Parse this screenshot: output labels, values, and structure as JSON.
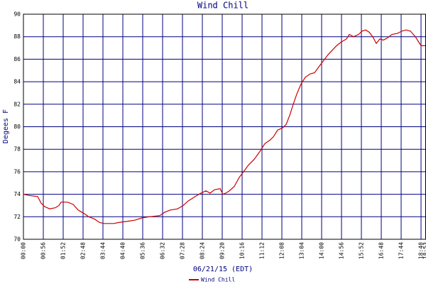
{
  "chart_data": {
    "type": "line",
    "title": "Wind Chill",
    "x_label": "06/21/15 (EDT)",
    "y_label": "Degees F",
    "xlim": [
      0,
      1133
    ],
    "ylim": [
      70,
      90
    ],
    "yticks": [
      70,
      72,
      74,
      76,
      78,
      80,
      82,
      84,
      86,
      88,
      90
    ],
    "xticks": [
      {
        "value": 0,
        "label": "00:00"
      },
      {
        "value": 56,
        "label": "00:56"
      },
      {
        "value": 112,
        "label": "01:52"
      },
      {
        "value": 168,
        "label": "02:48"
      },
      {
        "value": 224,
        "label": "03:44"
      },
      {
        "value": 280,
        "label": "04:40"
      },
      {
        "value": 336,
        "label": "05:36"
      },
      {
        "value": 392,
        "label": "06:32"
      },
      {
        "value": 448,
        "label": "07:28"
      },
      {
        "value": 504,
        "label": "08:24"
      },
      {
        "value": 560,
        "label": "09:20"
      },
      {
        "value": 616,
        "label": "10:16"
      },
      {
        "value": 672,
        "label": "11:12"
      },
      {
        "value": 728,
        "label": "12:08"
      },
      {
        "value": 784,
        "label": "13:04"
      },
      {
        "value": 840,
        "label": "14:00"
      },
      {
        "value": 896,
        "label": "14:56"
      },
      {
        "value": 952,
        "label": "15:52"
      },
      {
        "value": 1008,
        "label": "16:48"
      },
      {
        "value": 1064,
        "label": "17:44"
      },
      {
        "value": 1120,
        "label": "18:40"
      },
      {
        "value": 1133,
        "label": "18:53"
      }
    ],
    "grid": true,
    "legend": "bottom",
    "series": [
      {
        "name": "Wind Chill",
        "color": "#cc0000",
        "x": [
          0,
          14,
          40,
          50,
          60,
          74,
          90,
          100,
          106,
          124,
          140,
          154,
          170,
          184,
          200,
          214,
          226,
          254,
          270,
          294,
          314,
          334,
          354,
          384,
          398,
          414,
          434,
          450,
          464,
          484,
          500,
          514,
          526,
          538,
          554,
          562,
          570,
          580,
          594,
          608,
          620,
          634,
          650,
          666,
          680,
          694,
          704,
          716,
          730,
          740,
          750,
          760,
          770,
          782,
          794,
          808,
          820,
          834,
          846,
          858,
          870,
          882,
          894,
          910,
          918,
          930,
          944,
          954,
          964,
          974,
          984,
          994,
          1004,
          1014,
          1026,
          1038,
          1054,
          1066,
          1078,
          1090,
          1104,
          1114,
          1120,
          1132
        ],
        "values": [
          74.0,
          73.9,
          73.8,
          73.2,
          72.9,
          72.7,
          72.8,
          73.0,
          73.3,
          73.3,
          73.1,
          72.6,
          72.3,
          72.0,
          71.8,
          71.5,
          71.4,
          71.4,
          71.5,
          71.6,
          71.7,
          71.9,
          72.0,
          72.1,
          72.4,
          72.6,
          72.7,
          73.0,
          73.4,
          73.8,
          74.1,
          74.3,
          74.1,
          74.4,
          74.5,
          74.0,
          74.1,
          74.3,
          74.7,
          75.5,
          76.0,
          76.6,
          77.1,
          77.8,
          78.5,
          78.8,
          79.1,
          79.7,
          79.9,
          80.2,
          81.0,
          82.0,
          82.9,
          83.8,
          84.4,
          84.7,
          84.8,
          85.4,
          85.9,
          86.4,
          86.8,
          87.2,
          87.5,
          87.8,
          88.2,
          88.0,
          88.2,
          88.5,
          88.6,
          88.4,
          88.0,
          87.4,
          87.8,
          87.7,
          87.9,
          88.2,
          88.3,
          88.5,
          88.6,
          88.5,
          88.0,
          87.5,
          87.2,
          87.2
        ]
      }
    ]
  }
}
